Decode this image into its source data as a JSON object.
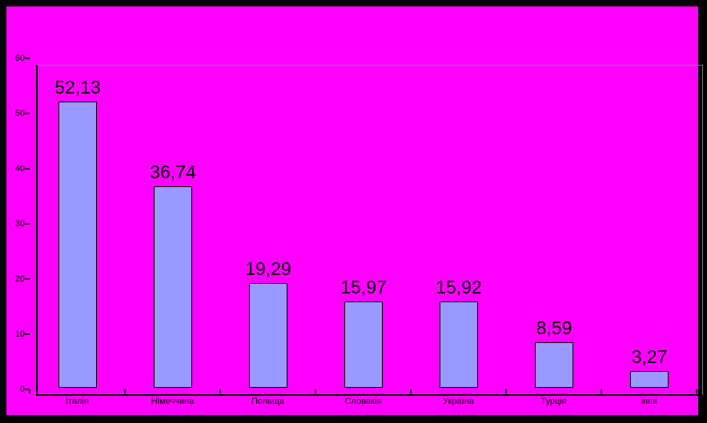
{
  "chart_data": {
    "type": "bar",
    "title": "",
    "xlabel": "",
    "ylabel": "",
    "categories": [
      "Італія",
      "Німеччина",
      "Польща",
      "Словакія",
      "Україна",
      "Турція",
      "інші"
    ],
    "values": [
      52.13,
      36.74,
      19.29,
      15.97,
      15.92,
      8.59,
      3.27
    ],
    "value_labels": [
      "52,13",
      "36,74",
      "19,29",
      "15,97",
      "15,92",
      "8,59",
      "3,27"
    ],
    "ylim": [
      0,
      60
    ],
    "y_ticks": [
      0,
      10,
      20,
      30,
      40,
      50,
      60
    ],
    "grid": false,
    "legend": false,
    "colors": {
      "background": "#ff00ff",
      "frame": "#000000",
      "bar_fill": "#9999ff",
      "bar_border": "#000000",
      "axis": "#000000",
      "plot_border": "#848284",
      "text": "#000000"
    }
  }
}
